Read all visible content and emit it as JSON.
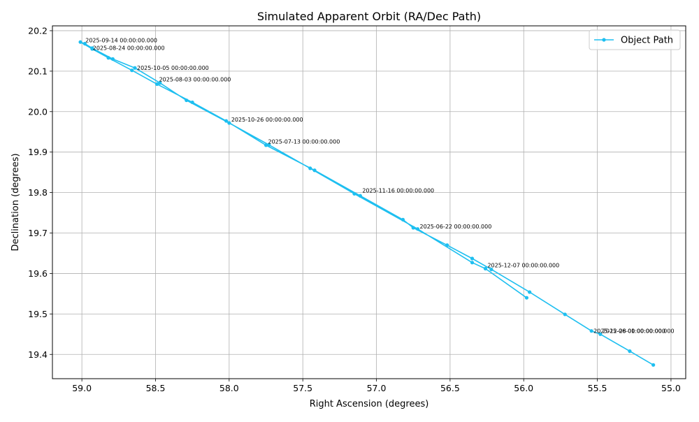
{
  "chart_data": {
    "type": "line",
    "title": "Simulated Apparent Orbit (RA/Dec Path)",
    "xlabel": "Right Ascension (degrees)",
    "ylabel": "Declination (degrees)",
    "x_inverted": true,
    "xlim": [
      59.2,
      54.9
    ],
    "ylim": [
      19.34,
      20.212
    ],
    "xticks": [
      59.0,
      58.5,
      58.0,
      57.5,
      57.0,
      56.5,
      56.0,
      55.5,
      55.0
    ],
    "xtick_labels": [
      "59.0",
      "58.5",
      "58.0",
      "57.5",
      "57.0",
      "56.5",
      "56.0",
      "55.5",
      "55.0"
    ],
    "yticks": [
      19.4,
      19.5,
      19.6,
      19.7,
      19.8,
      19.9,
      20.0,
      20.1,
      20.2
    ],
    "ytick_labels": [
      "19.4",
      "19.5",
      "19.6",
      "19.7",
      "19.8",
      "19.9",
      "20.0",
      "20.1",
      "20.2"
    ],
    "grid": true,
    "legend_position": "top-right",
    "colors": {
      "series": "#1ebff0",
      "grid": "#b0b0b0"
    },
    "series": [
      {
        "name": "Object Path",
        "x": [
          55.12,
          55.28,
          55.48,
          55.54,
          55.72,
          55.96,
          56.22,
          56.35,
          56.52,
          56.75,
          56.82,
          57.11,
          57.42,
          57.75,
          58.02,
          58.25,
          58.49,
          58.66,
          58.82,
          58.93,
          59.01,
          58.98,
          58.93,
          58.79,
          58.64,
          58.47,
          58.29,
          58.0,
          57.73,
          57.45,
          57.15,
          56.72,
          56.35,
          56.26,
          55.98
        ],
        "y": [
          19.374,
          19.408,
          19.45,
          19.458,
          19.499,
          19.554,
          19.61,
          19.637,
          19.67,
          19.713,
          19.733,
          19.792,
          19.855,
          19.917,
          19.977,
          20.023,
          20.068,
          20.102,
          20.133,
          20.155,
          20.172,
          20.168,
          20.157,
          20.13,
          20.108,
          20.071,
          20.028,
          19.972,
          19.918,
          19.86,
          19.797,
          19.71,
          19.627,
          19.612,
          19.54
        ]
      }
    ],
    "annotations": [
      {
        "text": "2025-09-14 00:00:00.000",
        "x": 58.99,
        "y": 20.168
      },
      {
        "text": "2025-08-24 00:00:00.000",
        "x": 58.94,
        "y": 20.149
      },
      {
        "text": "2025-10-05 00:00:00.000",
        "x": 58.64,
        "y": 20.1
      },
      {
        "text": "2025-08-03 00:00:00.000",
        "x": 58.49,
        "y": 20.071
      },
      {
        "text": "2025-10-26 00:00:00.000",
        "x": 58.0,
        "y": 19.972
      },
      {
        "text": "2025-07-13 00:00:00.000",
        "x": 57.75,
        "y": 19.918
      },
      {
        "text": "2025-11-16 00:00:00.000",
        "x": 57.11,
        "y": 19.797
      },
      {
        "text": "2025-06-22 00:00:00.000",
        "x": 56.72,
        "y": 19.708
      },
      {
        "text": "2025-12-07 00:00:00.000",
        "x": 56.26,
        "y": 19.612
      },
      {
        "text": "2025-12-28 00:00:00.000",
        "x": 55.54,
        "y": 19.45
      },
      {
        "text": "2025-06-01 00:00:00.000",
        "x": 55.48,
        "y": 19.45
      }
    ]
  }
}
